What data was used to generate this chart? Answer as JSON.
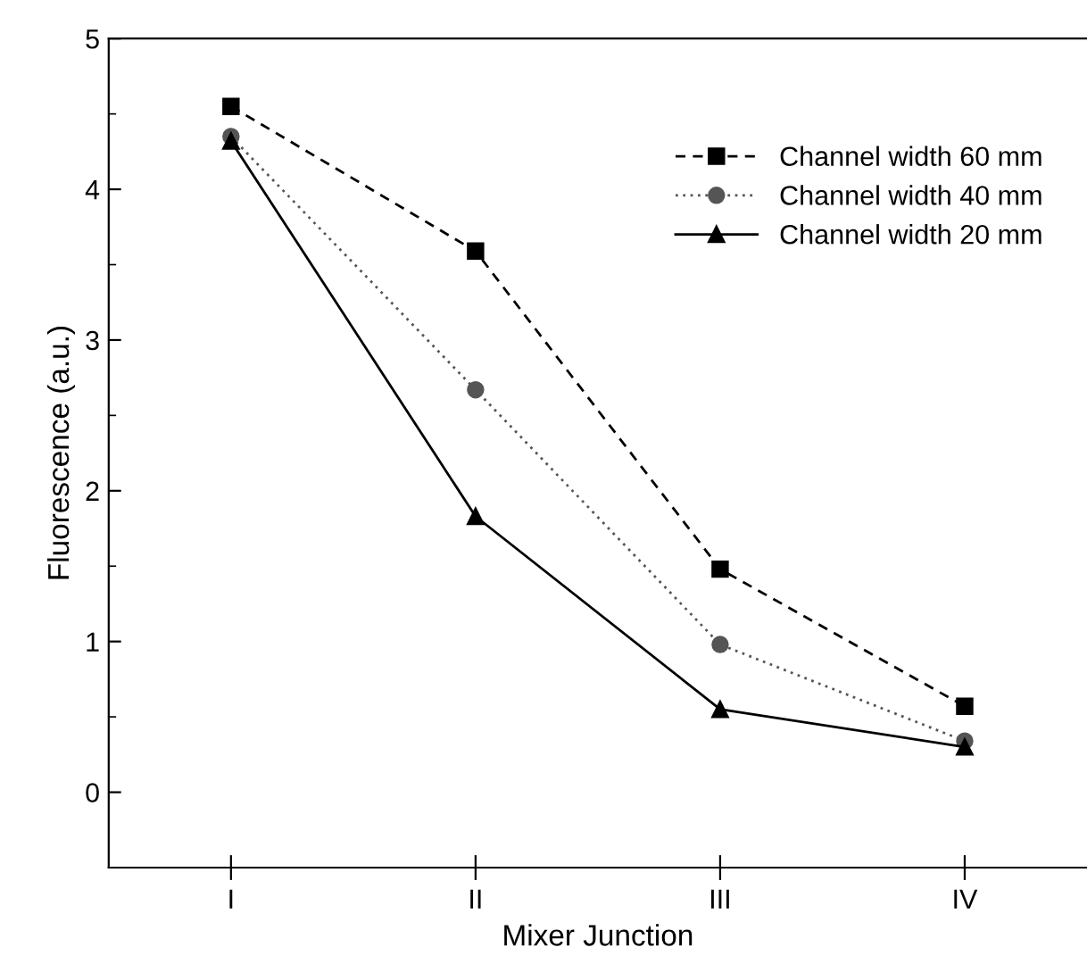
{
  "chart_data": {
    "type": "line",
    "xlabel": "Mixer Junction",
    "ylabel": "Fluorescence (a.u.)",
    "categories": [
      "I",
      "II",
      "III",
      "IV"
    ],
    "ylim": [
      -0.5,
      5
    ],
    "yticks": [
      0,
      1,
      2,
      3,
      4,
      5
    ],
    "grid": false,
    "legend": "top right",
    "series": [
      {
        "name": "Channel width 60 mm",
        "color": "#000000",
        "marker": "square",
        "line_style": "dashed",
        "values": [
          4.55,
          3.59,
          1.48,
          0.57
        ]
      },
      {
        "name": "Channel width 40 mm",
        "color": "#555555",
        "marker": "circle",
        "line_style": "dotted",
        "values": [
          4.35,
          2.67,
          0.98,
          0.34
        ]
      },
      {
        "name": "Channel width 20 mm",
        "color": "#000000",
        "marker": "triangle",
        "line_style": "solid",
        "values": [
          4.32,
          1.83,
          0.55,
          0.3
        ]
      }
    ]
  }
}
